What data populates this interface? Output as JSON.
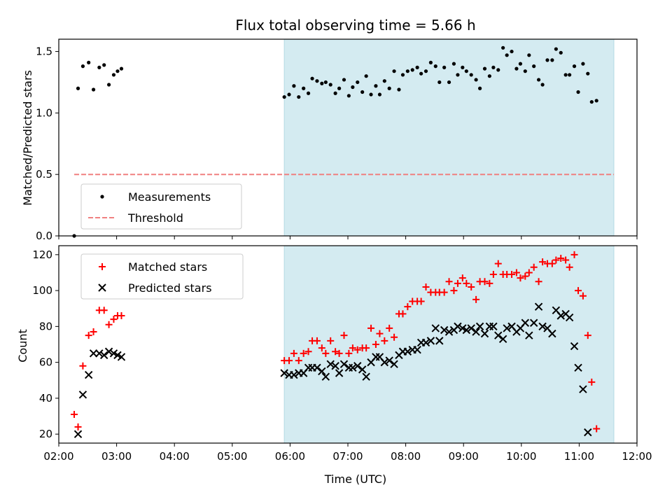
{
  "chart_data": [
    {
      "panel": "top",
      "type": "scatter",
      "title": "Flux total observing time = 5.66 h",
      "ylabel": "Matched/Predicted stars",
      "xlim": [
        "02:00",
        "12:00"
      ],
      "ylim": [
        0,
        1.6
      ],
      "yticks": [
        0.0,
        0.5,
        1.0,
        1.5
      ],
      "ytick_labels": [
        "0.0",
        "0.5",
        "1.0",
        "1.5"
      ],
      "shaded_region": {
        "x_start": "05:54",
        "x_end": "11:36",
        "color": "#d4ebf1"
      },
      "legend_position": "lower-left",
      "threshold": {
        "name": "Threshold",
        "y": 0.5,
        "x_start": "02:16",
        "x_end": "11:36",
        "color": "#f08080",
        "style": "dashed"
      },
      "series": [
        {
          "name": "Measurements",
          "marker": "dot",
          "color": "#000000",
          "points": [
            [
              "02:16",
              0.0
            ],
            [
              "02:20",
              1.2
            ],
            [
              "02:25",
              1.38
            ],
            [
              "02:31",
              1.41
            ],
            [
              "02:36",
              1.19
            ],
            [
              "02:42",
              1.37
            ],
            [
              "02:47",
              1.39
            ],
            [
              "02:52",
              1.23
            ],
            [
              "02:57",
              1.31
            ],
            [
              "03:01",
              1.34
            ],
            [
              "03:05",
              1.36
            ],
            [
              "05:54",
              1.13
            ],
            [
              "05:59",
              1.15
            ],
            [
              "06:04",
              1.22
            ],
            [
              "06:09",
              1.13
            ],
            [
              "06:14",
              1.2
            ],
            [
              "06:19",
              1.16
            ],
            [
              "06:23",
              1.28
            ],
            [
              "06:28",
              1.26
            ],
            [
              "06:33",
              1.24
            ],
            [
              "06:37",
              1.25
            ],
            [
              "06:42",
              1.23
            ],
            [
              "06:47",
              1.16
            ],
            [
              "06:51",
              1.2
            ],
            [
              "06:56",
              1.27
            ],
            [
              "07:01",
              1.14
            ],
            [
              "07:05",
              1.21
            ],
            [
              "07:10",
              1.25
            ],
            [
              "07:15",
              1.17
            ],
            [
              "07:19",
              1.3
            ],
            [
              "07:24",
              1.15
            ],
            [
              "07:29",
              1.22
            ],
            [
              "07:33",
              1.15
            ],
            [
              "07:38",
              1.26
            ],
            [
              "07:43",
              1.2
            ],
            [
              "07:48",
              1.34
            ],
            [
              "07:53",
              1.19
            ],
            [
              "07:57",
              1.31
            ],
            [
              "08:02",
              1.34
            ],
            [
              "08:07",
              1.35
            ],
            [
              "08:12",
              1.37
            ],
            [
              "08:16",
              1.32
            ],
            [
              "08:21",
              1.34
            ],
            [
              "08:26",
              1.41
            ],
            [
              "08:31",
              1.38
            ],
            [
              "08:35",
              1.25
            ],
            [
              "08:40",
              1.37
            ],
            [
              "08:45",
              1.25
            ],
            [
              "08:50",
              1.4
            ],
            [
              "08:54",
              1.31
            ],
            [
              "08:59",
              1.37
            ],
            [
              "09:03",
              1.34
            ],
            [
              "09:08",
              1.31
            ],
            [
              "09:13",
              1.27
            ],
            [
              "09:17",
              1.2
            ],
            [
              "09:22",
              1.36
            ],
            [
              "09:27",
              1.3
            ],
            [
              "09:31",
              1.37
            ],
            [
              "09:36",
              1.35
            ],
            [
              "09:41",
              1.53
            ],
            [
              "09:45",
              1.47
            ],
            [
              "09:50",
              1.5
            ],
            [
              "09:55",
              1.36
            ],
            [
              "09:59",
              1.4
            ],
            [
              "10:04",
              1.34
            ],
            [
              "10:08",
              1.47
            ],
            [
              "10:13",
              1.38
            ],
            [
              "10:18",
              1.27
            ],
            [
              "10:22",
              1.23
            ],
            [
              "10:27",
              1.43
            ],
            [
              "10:32",
              1.43
            ],
            [
              "10:36",
              1.52
            ],
            [
              "10:41",
              1.49
            ],
            [
              "10:46",
              1.31
            ],
            [
              "10:50",
              1.31
            ],
            [
              "10:55",
              1.38
            ],
            [
              "10:59",
              1.17
            ],
            [
              "11:04",
              1.4
            ],
            [
              "11:09",
              1.32
            ],
            [
              "11:13",
              1.09
            ],
            [
              "11:18",
              1.1
            ]
          ]
        }
      ]
    },
    {
      "panel": "bottom",
      "type": "scatter",
      "xlabel": "Time (UTC)",
      "ylabel": "Count",
      "xlim": [
        "02:00",
        "12:00"
      ],
      "xticks": [
        "02:00",
        "03:00",
        "04:00",
        "05:00",
        "06:00",
        "07:00",
        "08:00",
        "09:00",
        "10:00",
        "11:00",
        "12:00"
      ],
      "ylim": [
        15,
        125
      ],
      "yticks": [
        20,
        40,
        60,
        80,
        100,
        120
      ],
      "shaded_region": {
        "x_start": "05:54",
        "x_end": "11:36",
        "color": "#d4ebf1"
      },
      "legend_position": "upper-left",
      "series": [
        {
          "name": "Matched stars",
          "marker": "plus",
          "color": "#ff0000",
          "points": [
            [
              "02:16",
              31
            ],
            [
              "02:20",
              24
            ],
            [
              "02:25",
              58
            ],
            [
              "02:31",
              75
            ],
            [
              "02:36",
              77
            ],
            [
              "02:42",
              89
            ],
            [
              "02:47",
              89
            ],
            [
              "02:52",
              81
            ],
            [
              "02:57",
              84
            ],
            [
              "03:01",
              86
            ],
            [
              "03:05",
              86
            ],
            [
              "05:54",
              61
            ],
            [
              "05:59",
              61
            ],
            [
              "06:04",
              65
            ],
            [
              "06:09",
              61
            ],
            [
              "06:14",
              65
            ],
            [
              "06:19",
              66
            ],
            [
              "06:23",
              72
            ],
            [
              "06:28",
              72
            ],
            [
              "06:33",
              68
            ],
            [
              "06:37",
              65
            ],
            [
              "06:42",
              72
            ],
            [
              "06:47",
              66
            ],
            [
              "06:51",
              65
            ],
            [
              "06:56",
              75
            ],
            [
              "07:01",
              65
            ],
            [
              "07:05",
              68
            ],
            [
              "07:10",
              67
            ],
            [
              "07:15",
              68
            ],
            [
              "07:19",
              68
            ],
            [
              "07:24",
              79
            ],
            [
              "07:29",
              70
            ],
            [
              "07:33",
              76
            ],
            [
              "07:38",
              72
            ],
            [
              "07:43",
              79
            ],
            [
              "07:48",
              74
            ],
            [
              "07:53",
              87
            ],
            [
              "07:57",
              87
            ],
            [
              "08:02",
              91
            ],
            [
              "08:07",
              94
            ],
            [
              "08:12",
              94
            ],
            [
              "08:16",
              94
            ],
            [
              "08:21",
              102
            ],
            [
              "08:26",
              99
            ],
            [
              "08:31",
              99
            ],
            [
              "08:35",
              99
            ],
            [
              "08:40",
              99
            ],
            [
              "08:45",
              105
            ],
            [
              "08:50",
              100
            ],
            [
              "08:54",
              104
            ],
            [
              "08:59",
              107
            ],
            [
              "09:03",
              104
            ],
            [
              "09:08",
              102
            ],
            [
              "09:13",
              95
            ],
            [
              "09:17",
              105
            ],
            [
              "09:22",
              105
            ],
            [
              "09:27",
              104
            ],
            [
              "09:31",
              109
            ],
            [
              "09:36",
              115
            ],
            [
              "09:41",
              109
            ],
            [
              "09:45",
              109
            ],
            [
              "09:50",
              109
            ],
            [
              "09:55",
              110
            ],
            [
              "09:59",
              107
            ],
            [
              "10:04",
              108
            ],
            [
              "10:08",
              110
            ],
            [
              "10:13",
              113
            ],
            [
              "10:18",
              105
            ],
            [
              "10:22",
              116
            ],
            [
              "10:27",
              115
            ],
            [
              "10:32",
              115
            ],
            [
              "10:36",
              117
            ],
            [
              "10:41",
              118
            ],
            [
              "10:46",
              117
            ],
            [
              "10:50",
              113
            ],
            [
              "10:55",
              120
            ],
            [
              "10:59",
              100
            ],
            [
              "11:04",
              97
            ],
            [
              "11:09",
              75
            ],
            [
              "11:13",
              49
            ],
            [
              "11:18",
              23
            ]
          ]
        },
        {
          "name": "Predicted stars",
          "marker": "x",
          "color": "#000000",
          "points": [
            [
              "02:20",
              20
            ],
            [
              "02:25",
              42
            ],
            [
              "02:31",
              53
            ],
            [
              "02:36",
              65
            ],
            [
              "02:42",
              65
            ],
            [
              "02:47",
              64
            ],
            [
              "02:52",
              66
            ],
            [
              "02:57",
              65
            ],
            [
              "03:01",
              64
            ],
            [
              "03:05",
              63
            ],
            [
              "05:54",
              54
            ],
            [
              "05:59",
              53
            ],
            [
              "06:04",
              53
            ],
            [
              "06:09",
              54
            ],
            [
              "06:14",
              54
            ],
            [
              "06:19",
              57
            ],
            [
              "06:23",
              57
            ],
            [
              "06:28",
              57
            ],
            [
              "06:33",
              55
            ],
            [
              "06:37",
              52
            ],
            [
              "06:42",
              59
            ],
            [
              "06:47",
              58
            ],
            [
              "06:51",
              54
            ],
            [
              "06:56",
              59
            ],
            [
              "07:01",
              57
            ],
            [
              "07:05",
              57
            ],
            [
              "07:10",
              58
            ],
            [
              "07:15",
              56
            ],
            [
              "07:19",
              52
            ],
            [
              "07:24",
              60
            ],
            [
              "07:29",
              63
            ],
            [
              "07:33",
              63
            ],
            [
              "07:38",
              60
            ],
            [
              "07:43",
              61
            ],
            [
              "07:48",
              59
            ],
            [
              "07:53",
              64
            ],
            [
              "07:57",
              66
            ],
            [
              "08:02",
              66
            ],
            [
              "08:07",
              67
            ],
            [
              "08:12",
              67
            ],
            [
              "08:16",
              71
            ],
            [
              "08:21",
              71
            ],
            [
              "08:26",
              72
            ],
            [
              "08:31",
              79
            ],
            [
              "08:35",
              72
            ],
            [
              "08:40",
              78
            ],
            [
              "08:45",
              77
            ],
            [
              "08:50",
              78
            ],
            [
              "08:54",
              80
            ],
            [
              "08:59",
              79
            ],
            [
              "09:03",
              78
            ],
            [
              "09:08",
              79
            ],
            [
              "09:13",
              77
            ],
            [
              "09:17",
              80
            ],
            [
              "09:22",
              76
            ],
            [
              "09:27",
              80
            ],
            [
              "09:31",
              80
            ],
            [
              "09:36",
              75
            ],
            [
              "09:41",
              73
            ],
            [
              "09:45",
              79
            ],
            [
              "09:50",
              80
            ],
            [
              "09:55",
              77
            ],
            [
              "09:59",
              79
            ],
            [
              "10:04",
              82
            ],
            [
              "10:08",
              75
            ],
            [
              "10:13",
              82
            ],
            [
              "10:18",
              91
            ],
            [
              "10:22",
              80
            ],
            [
              "10:27",
              79
            ],
            [
              "10:32",
              76
            ],
            [
              "10:36",
              89
            ],
            [
              "10:41",
              86
            ],
            [
              "10:46",
              87
            ],
            [
              "10:50",
              85
            ],
            [
              "10:55",
              69
            ],
            [
              "10:59",
              57
            ],
            [
              "11:04",
              45
            ],
            [
              "11:09",
              21
            ]
          ]
        }
      ]
    }
  ]
}
